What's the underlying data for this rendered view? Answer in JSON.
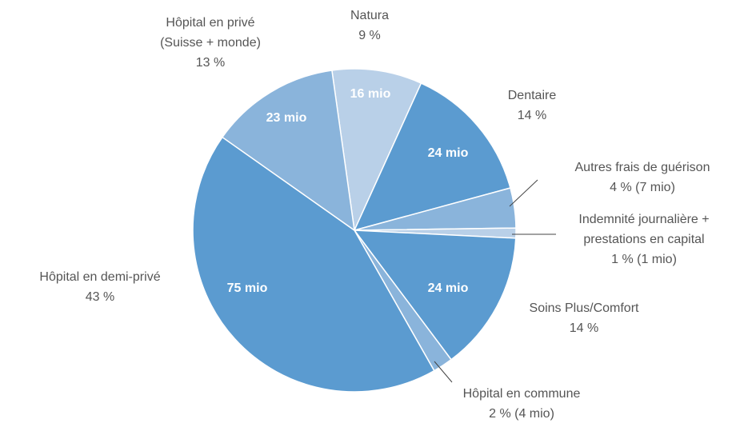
{
  "chart_data": {
    "type": "pie",
    "categories": [
      [
        "Natura"
      ],
      [
        "Dentaire"
      ],
      [
        "Autres frais de guérison"
      ],
      [
        "Indemnité journalière +",
        "prestations en capital"
      ],
      [
        "Soins Plus/Comfort"
      ],
      [
        "Hôpital en commune"
      ],
      [
        "Hôpital en demi-privé"
      ],
      [
        "Hôpital en privé",
        "(Suisse + monde)"
      ]
    ],
    "values": [
      9,
      14,
      4,
      1,
      14,
      2,
      43,
      13
    ],
    "value_labels": [
      "9 %",
      "14 %",
      "4 % (7 mio)",
      "1 % (1 mio)",
      "14 %",
      "2 % (4 mio)",
      "43 %",
      "13 %"
    ],
    "amounts": [
      16,
      24,
      7,
      1,
      24,
      4,
      75,
      23
    ],
    "amount_labels": [
      "16 mio",
      "24 mio",
      null,
      null,
      "24 mio",
      null,
      "75 mio",
      "23 mio"
    ],
    "colors": [
      "#b9d0e8",
      "#5b9bd0",
      "#8ab4db",
      "#b9d0e8",
      "#5b9bd0",
      "#8ab4db",
      "#5b9bd0",
      "#8ab4db"
    ]
  }
}
